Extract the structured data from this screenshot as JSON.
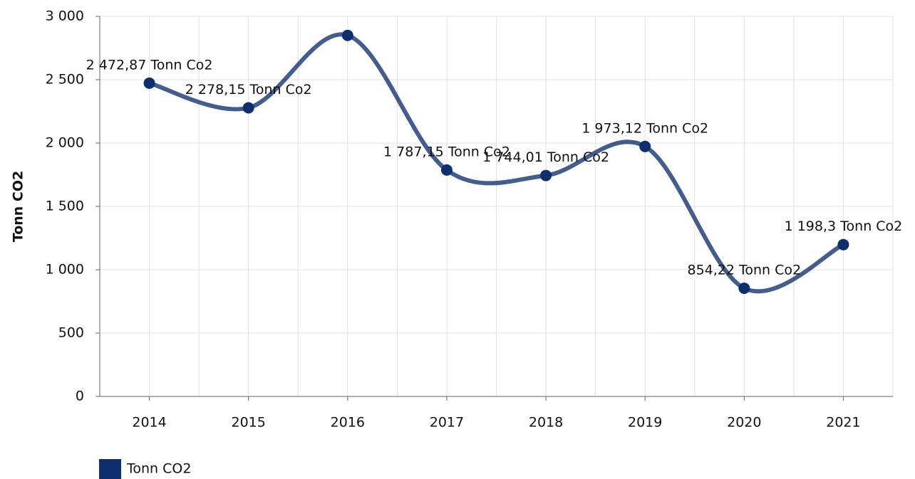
{
  "chart_data": {
    "type": "line",
    "y_label": "Tonn CO2",
    "categories": [
      "2014",
      "2015",
      "2016",
      "2017",
      "2018",
      "2019",
      "2020",
      "2021"
    ],
    "series": [
      {
        "name": "Tonn CO2",
        "color": "#0d2f6e",
        "values": [
          2472.87,
          2278.15,
          2850,
          1787.15,
          1744.01,
          1973.12,
          854.22,
          1198.3
        ],
        "value_labels": [
          "2 472,87 Tonn Co2",
          "2 278,15 Tonn Co2",
          null,
          "1 787,15 Tonn Co2",
          "1 744,01 Tonn Co2",
          "1 973,12 Tonn Co2",
          "854,22 Tonn Co2",
          "1 198,3 Tonn Co2"
        ]
      }
    ],
    "ylim": [
      0,
      3000
    ],
    "yticks": [
      0,
      500,
      {
        "value": 1000,
        "label": "1 000"
      },
      {
        "value": 1500,
        "label": "1 500"
      },
      {
        "value": 2000,
        "label": "2 000"
      },
      {
        "value": 2500,
        "label": "2 500"
      },
      {
        "value": 3000,
        "label": "3 000"
      }
    ],
    "grid": true,
    "smooth": true,
    "legend": "bottom-left"
  }
}
